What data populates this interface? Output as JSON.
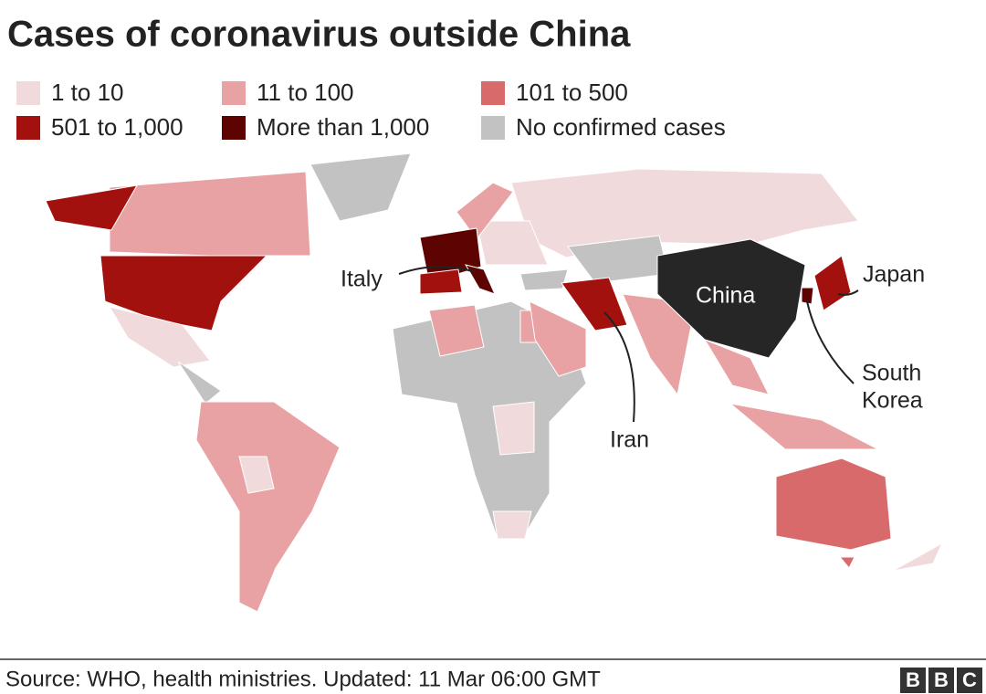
{
  "header": {
    "title": "Cases of coronavirus outside China"
  },
  "legend": [
    {
      "label": "1 to 10",
      "color": "#f1dadb"
    },
    {
      "label": "11 to 100",
      "color": "#e9a2a3"
    },
    {
      "label": "101 to 500",
      "color": "#d86a6c"
    },
    {
      "label": "501 to 1,000",
      "color": "#a3110e"
    },
    {
      "label": "More than 1,000",
      "color": "#5d0403"
    },
    {
      "label": "No confirmed cases",
      "color": "#c2c2c2"
    }
  ],
  "map": {
    "labels": {
      "italy": "Italy",
      "japan": "Japan",
      "china": "China",
      "iran": "Iran",
      "south_korea": [
        "South",
        "Korea"
      ]
    }
  },
  "footer": {
    "source": "Source: WHO, health ministries. Updated: 11 Mar 06:00 GMT",
    "logo": [
      "B",
      "B",
      "C"
    ]
  }
}
